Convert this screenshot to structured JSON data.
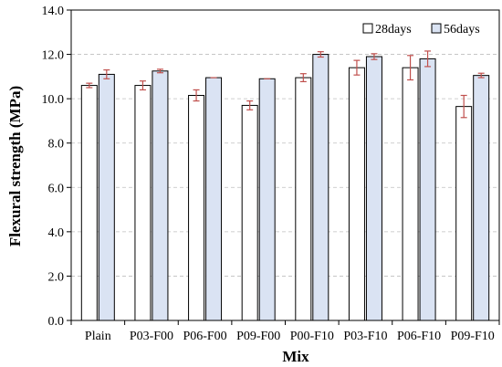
{
  "chart_data": {
    "type": "bar",
    "title": "",
    "xlabel": "Mix",
    "ylabel": "Flexural strength (MPa)",
    "categories": [
      "Plain",
      "P03-F00",
      "P06-F00",
      "P09-F00",
      "P00-F10",
      "P03-F10",
      "P06-F10",
      "P09-F10"
    ],
    "series": [
      {
        "name": "28days",
        "values": [
          10.6,
          10.6,
          10.15,
          9.7,
          10.95,
          11.4,
          11.4,
          9.65
        ],
        "errors": [
          0.1,
          0.2,
          0.25,
          0.2,
          0.18,
          0.33,
          0.55,
          0.5
        ],
        "color": "#ffffff"
      },
      {
        "name": "56days",
        "values": [
          11.1,
          11.25,
          10.95,
          10.9,
          12.0,
          11.9,
          11.8,
          11.05
        ],
        "errors": [
          0.2,
          0.08,
          0.0,
          0.0,
          0.12,
          0.13,
          0.35,
          0.1
        ],
        "color": "#dae3f3"
      }
    ],
    "ylim": [
      0,
      14
    ],
    "yticks": [
      "0.0",
      "2.0",
      "4.0",
      "6.0",
      "8.0",
      "10.0",
      "12.0",
      "14.0"
    ],
    "grid": "horizontal-dashed",
    "legend_position": "top-right",
    "error_bar_color": "#c0504d"
  }
}
